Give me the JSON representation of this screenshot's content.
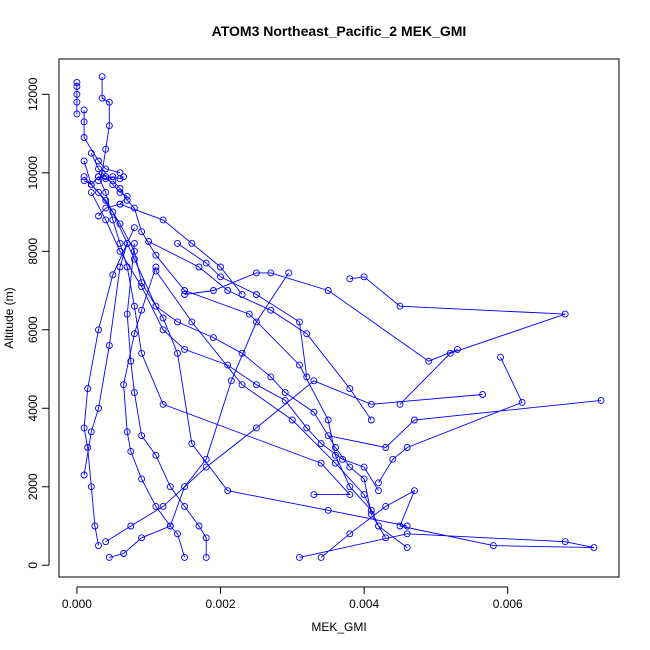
{
  "chart_data": {
    "type": "line",
    "title": "ATOM3 Northeast_Pacific_2 MEK_GMI",
    "xlabel": "MEK_GMI",
    "ylabel": "Altitude (m)",
    "xlim": [
      -0.00025,
      0.00755
    ],
    "ylim": [
      -300,
      12900
    ],
    "xticks": [
      0,
      0.002,
      0.004,
      0.006
    ],
    "xtick_labels": [
      "0.000",
      "0.002",
      "0.004",
      "0.006"
    ],
    "yticks": [
      0,
      2000,
      4000,
      6000,
      8000,
      10000,
      12000
    ],
    "ytick_labels": [
      "0",
      "2000",
      "4000",
      "6000",
      "8000",
      "10000",
      "12000"
    ],
    "grid": false,
    "marker": "open-circle",
    "series_color": "#0000ff",
    "series": [
      {
        "points": [
          [
            0.00045,
            200
          ],
          [
            0.00065,
            300
          ],
          [
            0.0009,
            700
          ],
          [
            0.0013,
            1000
          ],
          [
            0.0015,
            2000
          ],
          [
            0.0018,
            2700
          ],
          [
            0.00215,
            4700
          ],
          [
            0.0025,
            6200
          ],
          [
            0.00295,
            7450
          ]
        ]
      },
      {
        "points": [
          [
            0.0004,
            600
          ],
          [
            0.00075,
            1000
          ],
          [
            0.0012,
            1500
          ],
          [
            0.0018,
            2500
          ],
          [
            0.0025,
            3500
          ],
          [
            0.0033,
            4700
          ],
          [
            0.0041,
            4100
          ],
          [
            0.00565,
            4350
          ]
        ]
      },
      {
        "points": [
          [
            0.0046,
            450
          ],
          [
            0.0042,
            1000
          ],
          [
            0.004,
            1800
          ],
          [
            0.0036,
            2600
          ],
          [
            0.003,
            3700
          ],
          [
            0.0023,
            4600
          ],
          [
            0.0016,
            6200
          ],
          [
            0.0011,
            7500
          ]
        ]
      },
      {
        "points": [
          [
            0.0034,
            200
          ],
          [
            0.0038,
            800
          ],
          [
            0.0043,
            1500
          ],
          [
            0.0047,
            1900
          ],
          [
            0.0045,
            1000
          ],
          [
            0.0058,
            500
          ],
          [
            0.0072,
            450
          ],
          [
            0.0068,
            600
          ],
          [
            0.0046,
            800
          ],
          [
            0.0031,
            200
          ]
        ]
      },
      {
        "points": [
          [
            0.0015,
            200
          ],
          [
            0.0014,
            800
          ],
          [
            0.0013,
            1000
          ],
          [
            0.0011,
            1500
          ],
          [
            0.0009,
            2200
          ],
          [
            0.00075,
            2900
          ],
          [
            0.0007,
            3400
          ],
          [
            0.00065,
            4600
          ],
          [
            0.0008,
            5900
          ],
          [
            0.0009,
            6500
          ],
          [
            0.0011,
            7600
          ]
        ]
      },
      {
        "points": [
          [
            0.0018,
            200
          ],
          [
            0.0018,
            700
          ],
          [
            0.0017,
            1000
          ],
          [
            0.0015,
            1500
          ],
          [
            0.0013,
            2000
          ],
          [
            0.0011,
            2800
          ],
          [
            0.0009,
            3300
          ],
          [
            0.0008,
            4400
          ],
          [
            0.00075,
            5200
          ],
          [
            0.0007,
            6400
          ],
          [
            0.0008,
            8200
          ]
        ]
      },
      {
        "points": [
          [
            0.0003,
            500
          ],
          [
            0.00025,
            1000
          ],
          [
            0.0002,
            2000
          ],
          [
            0.00015,
            3000
          ],
          [
            0.0001,
            3500
          ],
          [
            0.00015,
            4500
          ],
          [
            0.0003,
            6000
          ],
          [
            0.0005,
            7400
          ],
          [
            0.0008,
            8600
          ]
        ]
      },
      {
        "points": [
          [
            0.0001,
            2300
          ],
          [
            0.0002,
            3400
          ],
          [
            0.0003,
            4000
          ],
          [
            0.00045,
            5600
          ],
          [
            0.0006,
            7600
          ],
          [
            0.0007,
            8200
          ]
        ]
      },
      {
        "points": [
          [
            0.0035,
            3300
          ],
          [
            0.0043,
            3000
          ],
          [
            0.0047,
            3700
          ],
          [
            0.0073,
            4200
          ]
        ]
      },
      {
        "points": [
          [
            0.0045,
            4100
          ],
          [
            0.0052,
            5400
          ],
          [
            0.0068,
            6400
          ],
          [
            0.0045,
            6600
          ],
          [
            0.004,
            7350
          ],
          [
            0.0038,
            7300
          ]
        ]
      },
      {
        "points": [
          [
            0.0032,
            4800
          ],
          [
            0.0031,
            6200
          ],
          [
            0.0025,
            6900
          ],
          [
            0.002,
            7350
          ],
          [
            0.0018,
            7700
          ],
          [
            0.0014,
            8200
          ]
        ]
      },
      {
        "points": [
          [
            0.0059,
            5300
          ],
          [
            0.0062,
            4150
          ],
          [
            0.0046,
            3000
          ],
          [
            0.0044,
            2700
          ],
          [
            0.0042,
            2100
          ]
        ]
      },
      {
        "points": [
          [
            0.0015,
            6900
          ],
          [
            0.0019,
            7000
          ],
          [
            0.0025,
            7450
          ],
          [
            0.0027,
            7450
          ],
          [
            0.0035,
            7000
          ],
          [
            0.0049,
            5200
          ],
          [
            0.0053,
            5500
          ]
        ]
      },
      {
        "points": [
          [
            0.001,
            8250
          ],
          [
            0.0017,
            7600
          ],
          [
            0.0021,
            7000
          ],
          [
            0.0027,
            6500
          ],
          [
            0.0032,
            5900
          ],
          [
            0.0038,
            4500
          ],
          [
            0.0041,
            3700
          ]
        ]
      },
      {
        "points": [
          [
            0.0006,
            9200
          ],
          [
            0.0012,
            8800
          ],
          [
            0.0016,
            8200
          ],
          [
            0.002,
            7600
          ],
          [
            0.0023,
            6900
          ]
        ]
      },
      {
        "points": [
          [
            0.0003,
            9900
          ],
          [
            0.0004,
            9500
          ],
          [
            0.0005,
            8800
          ],
          [
            0.0006,
            8200
          ],
          [
            0.0007,
            7600
          ],
          [
            0.0008,
            6600
          ],
          [
            0.0009,
            5400
          ],
          [
            0.0012,
            4100
          ],
          [
            0.0034,
            2600
          ],
          [
            0.0038,
            1800
          ],
          [
            0.0033,
            1800
          ]
        ]
      },
      {
        "points": [
          [
            0.0001,
            10300
          ],
          [
            0.0002,
            9700
          ],
          [
            0.0004,
            9300
          ],
          [
            0.0006,
            8700
          ],
          [
            0.0008,
            8000
          ],
          [
            0.0009,
            7200
          ],
          [
            0.0012,
            6300
          ],
          [
            0.0014,
            5400
          ],
          [
            0.0016,
            3100
          ],
          [
            0.0021,
            1900
          ],
          [
            0.0035,
            1400
          ],
          [
            0.0046,
            1000
          ]
        ]
      },
      {
        "points": [
          [
            0.0005,
            9800
          ],
          [
            0.0006,
            9600
          ],
          [
            0.0007,
            9300
          ],
          [
            0.0008,
            9100
          ],
          [
            0.0009,
            8500
          ],
          [
            0.0011,
            7900
          ],
          [
            0.0015,
            7000
          ],
          [
            0.0024,
            6400
          ],
          [
            0.0031,
            5100
          ],
          [
            0.0035,
            3700
          ],
          [
            0.0036,
            2800
          ],
          [
            0.0038,
            2000
          ],
          [
            0.0041,
            1400
          ]
        ]
      },
      {
        "points": [
          [
            0.0002,
            9500
          ],
          [
            0.0004,
            8800
          ],
          [
            0.0006,
            8000
          ],
          [
            0.0009,
            7100
          ],
          [
            0.0012,
            6000
          ],
          [
            0.0015,
            5500
          ],
          [
            0.0021,
            5100
          ],
          [
            0.0025,
            4600
          ],
          [
            0.0029,
            4200
          ],
          [
            0.0032,
            3500
          ],
          [
            0.0034,
            3100
          ],
          [
            0.0037,
            2700
          ],
          [
            0.004,
            2500
          ],
          [
            0.0042,
            1900
          ]
        ]
      },
      {
        "points": [
          [
            0.0001,
            9900
          ],
          [
            0.0003,
            9500
          ],
          [
            0.0005,
            9000
          ],
          [
            0.0007,
            8200
          ],
          [
            0.0008,
            7800
          ],
          [
            0.0011,
            6600
          ],
          [
            0.0014,
            6200
          ],
          [
            0.0019,
            5800
          ],
          [
            0.0023,
            5400
          ],
          [
            0.0027,
            4800
          ],
          [
            0.0029,
            4400
          ],
          [
            0.0033,
            3900
          ],
          [
            0.0036,
            3000
          ],
          [
            0.0038,
            2500
          ],
          [
            0.004,
            2200
          ],
          [
            0.0041,
            1300
          ],
          [
            0.0043,
            700
          ]
        ]
      },
      {
        "points": [
          [
            0.0002,
            10500
          ],
          [
            0.0003,
            10100
          ],
          [
            0.0004,
            9900
          ],
          [
            0.0005,
            9700
          ],
          [
            0.0006,
            9500
          ],
          [
            0.0007,
            9400
          ],
          [
            0.0006,
            9200
          ],
          [
            0.0004,
            9100
          ],
          [
            0.0003,
            8900
          ]
        ]
      },
      {
        "points": [
          [
            0.0001,
            11600
          ],
          [
            0.0001,
            11300
          ],
          [
            0.0001,
            10900
          ],
          [
            0.0003,
            10300
          ],
          [
            0.0004,
            10100
          ],
          [
            0.0006,
            10000
          ]
        ]
      },
      {
        "points": [
          [
            0.0,
            12300
          ],
          [
            0.0,
            12200
          ],
          [
            0.0,
            12000
          ],
          [
            0.0,
            11800
          ],
          [
            0.0,
            11500
          ]
        ]
      },
      {
        "points": [
          [
            0.00035,
            12450
          ],
          [
            0.00035,
            11900
          ],
          [
            0.00045,
            11800
          ],
          [
            0.00045,
            11200
          ],
          [
            0.0004,
            10600
          ],
          [
            0.00035,
            10000
          ],
          [
            0.0003,
            9800
          ]
        ]
      },
      {
        "points": [
          [
            0.0001,
            9800
          ],
          [
            0.0002,
            9700
          ],
          [
            0.0003,
            9900
          ],
          [
            0.0004,
            9850
          ],
          [
            0.0005,
            9900
          ],
          [
            0.0006,
            9850
          ],
          [
            0.00065,
            9900
          ]
        ]
      }
    ]
  }
}
